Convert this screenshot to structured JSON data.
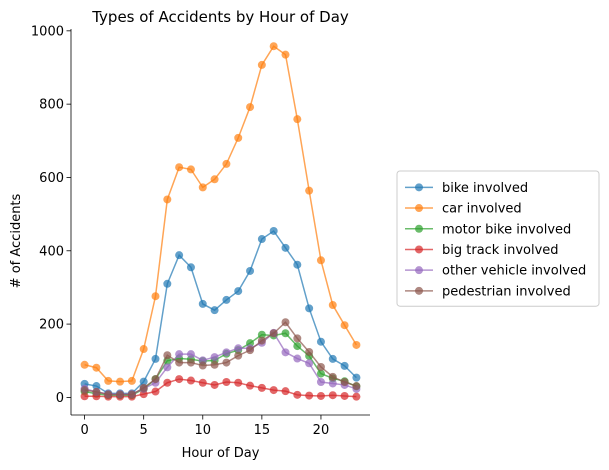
{
  "chart_data": {
    "type": "line",
    "title": "Types of Accidents by Hour of Day",
    "xlabel": "Hour of Day",
    "ylabel": "# of Accidents",
    "xlim": [
      -1.15,
      24.15
    ],
    "ylim": [
      -48,
      1005
    ],
    "xticks": [
      0,
      5,
      10,
      15,
      20
    ],
    "yticks": [
      0,
      200,
      400,
      600,
      800,
      1000
    ],
    "grid": false,
    "legend_position": "center-right (outside plot)",
    "x": [
      0,
      1,
      2,
      3,
      4,
      5,
      6,
      7,
      8,
      9,
      10,
      11,
      12,
      13,
      14,
      15,
      16,
      17,
      18,
      19,
      20,
      21,
      22,
      23
    ],
    "series": [
      {
        "name": "bike involved",
        "color": "#1f77b4",
        "values": [
          37,
          31,
          11,
          11,
          11,
          43,
          105,
          310,
          388,
          355,
          255,
          238,
          266,
          290,
          345,
          432,
          454,
          408,
          362,
          243,
          152,
          105,
          86,
          54
        ]
      },
      {
        "name": "car involved",
        "color": "#ff7f0e",
        "values": [
          89,
          81,
          45,
          43,
          45,
          132,
          276,
          540,
          628,
          622,
          573,
          595,
          637,
          708,
          792,
          907,
          958,
          935,
          759,
          564,
          374,
          252,
          197,
          143
        ]
      },
      {
        "name": "motor bike involved",
        "color": "#2ca02c",
        "values": [
          16,
          10,
          6,
          6,
          6,
          23,
          50,
          100,
          106,
          104,
          99,
          101,
          119,
          129,
          148,
          171,
          169,
          175,
          140,
          113,
          65,
          52,
          44,
          30
        ]
      },
      {
        "name": "big track involved",
        "color": "#d62728",
        "values": [
          3,
          3,
          2,
          2,
          2,
          9,
          16,
          40,
          50,
          46,
          40,
          34,
          42,
          40,
          32,
          26,
          20,
          17,
          7,
          5,
          4,
          6,
          4,
          2
        ]
      },
      {
        "name": "other vehicle involved",
        "color": "#9467bd",
        "values": [
          24,
          15,
          9,
          9,
          9,
          24,
          40,
          82,
          118,
          118,
          101,
          110,
          123,
          134,
          134,
          149,
          176,
          123,
          106,
          93,
          42,
          38,
          34,
          23
        ]
      },
      {
        "name": "pedestrian involved",
        "color": "#8c564b",
        "values": [
          20,
          15,
          8,
          8,
          8,
          26,
          50,
          115,
          95,
          95,
          87,
          89,
          95,
          114,
          129,
          155,
          175,
          205,
          161,
          124,
          83,
          56,
          42,
          31
        ]
      }
    ]
  }
}
